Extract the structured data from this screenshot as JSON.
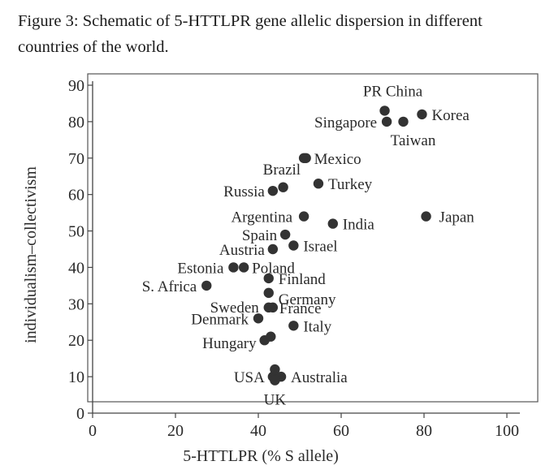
{
  "figure": {
    "caption": "Figure 3: Schematic of 5-HTTLPR gene allelic dispersion in different countries of the world."
  },
  "chart_data": {
    "type": "scatter",
    "xlabel": "5-HTTLPR (% S allele)",
    "ylabel": "individualism–collectivism",
    "xlim": [
      0,
      100
    ],
    "ylim": [
      0,
      90
    ],
    "xticks": [
      "0",
      "20",
      "40",
      "60",
      "80",
      "100"
    ],
    "yticks": [
      "0",
      "10",
      "20",
      "30",
      "40",
      "50",
      "60",
      "70",
      "80",
      "90"
    ],
    "grid": false,
    "points": [
      {
        "label": "PR China",
        "x": 70.5,
        "y": 83
      },
      {
        "label": "Singapore",
        "x": 71,
        "y": 80
      },
      {
        "label": "Taiwan",
        "x": 75,
        "y": 80
      },
      {
        "label": "Korea",
        "x": 79.5,
        "y": 82
      },
      {
        "label": "Brazil",
        "x": 51,
        "y": 70
      },
      {
        "label": "Mexico",
        "x": 51.5,
        "y": 70
      },
      {
        "label": "Turkey",
        "x": 54.5,
        "y": 63
      },
      {
        "label": "Russia",
        "x": 43.5,
        "y": 61
      },
      {
        "label": "",
        "x": 46,
        "y": 62
      },
      {
        "label": "Argentina",
        "x": 51,
        "y": 54
      },
      {
        "label": "India",
        "x": 58,
        "y": 52
      },
      {
        "label": "Japan",
        "x": 80.5,
        "y": 54
      },
      {
        "label": "Spain",
        "x": 46.5,
        "y": 49
      },
      {
        "label": "Austria",
        "x": 43.5,
        "y": 45
      },
      {
        "label": "Israel",
        "x": 48.5,
        "y": 46
      },
      {
        "label": "Estonia",
        "x": 34,
        "y": 40
      },
      {
        "label": "Poland",
        "x": 36.5,
        "y": 40
      },
      {
        "label": "S. Africa",
        "x": 27.5,
        "y": 35
      },
      {
        "label": "Finland",
        "x": 42.5,
        "y": 37
      },
      {
        "label": "Germany",
        "x": 42.5,
        "y": 33
      },
      {
        "label": "Sweden",
        "x": 42.5,
        "y": 29
      },
      {
        "label": "France",
        "x": 43.5,
        "y": 29
      },
      {
        "label": "Denmark",
        "x": 40,
        "y": 26
      },
      {
        "label": "Italy",
        "x": 48.5,
        "y": 24
      },
      {
        "label": "Hungary",
        "x": 41.5,
        "y": 20
      },
      {
        "label": "",
        "x": 43,
        "y": 21
      },
      {
        "label": "USA",
        "x": 43.5,
        "y": 10
      },
      {
        "label": "Australia",
        "x": 45.5,
        "y": 10
      },
      {
        "label": "",
        "x": 44,
        "y": 12
      },
      {
        "label": "UK",
        "x": 44,
        "y": 9
      }
    ]
  }
}
